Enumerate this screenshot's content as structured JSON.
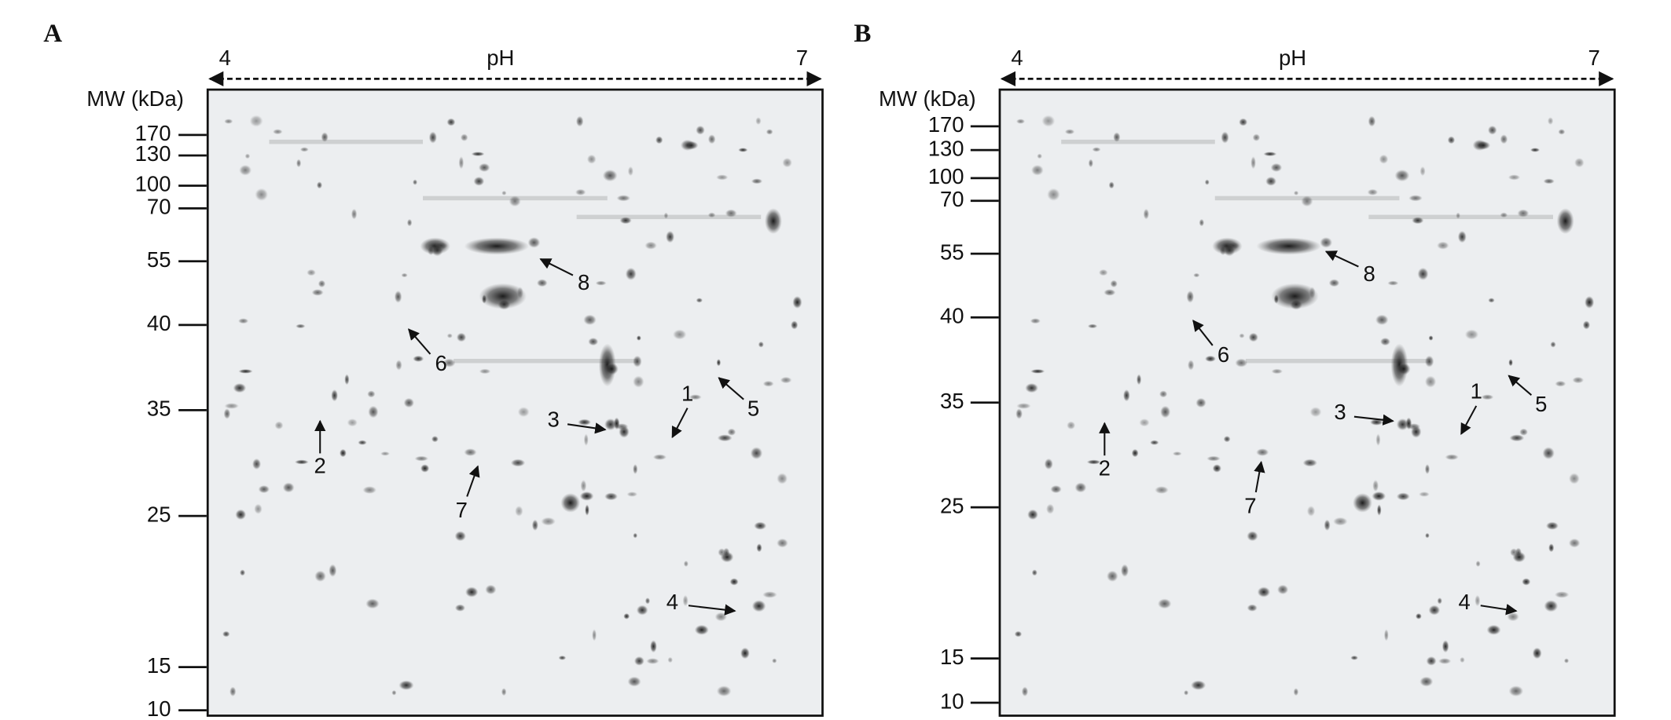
{
  "panels": [
    {
      "label": "A",
      "ph_axis": {
        "min": "4",
        "title": "pH",
        "max": "7"
      },
      "mw_title": "MW (kDa)",
      "mw_ticks": [
        170,
        130,
        100,
        70,
        55,
        40,
        35,
        25,
        15,
        10
      ],
      "spot_labels": [
        "1",
        "2",
        "3",
        "4",
        "5",
        "6",
        "7",
        "8"
      ]
    },
    {
      "label": "B",
      "ph_axis": {
        "min": "4",
        "title": "pH",
        "max": "7"
      },
      "mw_title": "MW (kDa)",
      "mw_ticks": [
        170,
        130,
        100,
        70,
        55,
        40,
        35,
        25,
        15,
        10
      ],
      "spot_labels": [
        "1",
        "2",
        "3",
        "4",
        "5",
        "6",
        "7",
        "8"
      ]
    }
  ]
}
